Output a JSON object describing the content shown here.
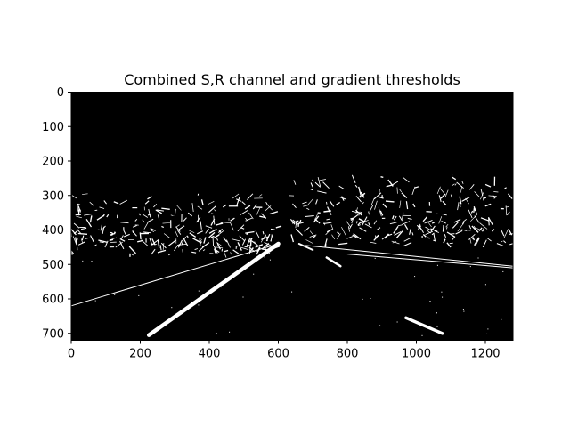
{
  "chart_data": {
    "type": "image",
    "title": "Combined S,R channel and gradient thresholds",
    "xlim": [
      0,
      1280
    ],
    "ylim": [
      720,
      0
    ],
    "xticks": [
      0,
      200,
      400,
      600,
      800,
      1000,
      1200
    ],
    "yticks": [
      0,
      100,
      200,
      300,
      400,
      500,
      600,
      700
    ],
    "xtick_labels": [
      "0",
      "200",
      "400",
      "600",
      "800",
      "1000",
      "1200"
    ],
    "ytick_labels": [
      "0",
      "100",
      "200",
      "300",
      "400",
      "500",
      "600",
      "700"
    ],
    "background_color": "#000000",
    "foreground_color": "#ffffff",
    "lane_lines": [
      {
        "name": "left-lane-solid",
        "points": [
          [
            225,
            705
          ],
          [
            600,
            440
          ]
        ],
        "width": 4.5
      },
      {
        "name": "right-lane-dashed-near",
        "points": [
          [
            970,
            655
          ],
          [
            1075,
            700
          ]
        ],
        "width": 3.5
      },
      {
        "name": "right-lane-dashed-mid",
        "points": [
          [
            740,
            480
          ],
          [
            780,
            505
          ]
        ],
        "width": 2.5
      },
      {
        "name": "right-lane-dashed-far",
        "points": [
          [
            660,
            440
          ],
          [
            700,
            458
          ]
        ],
        "width": 2
      },
      {
        "name": "road-edge-left",
        "points": [
          [
            0,
            620
          ],
          [
            600,
            440
          ]
        ],
        "width": 1
      },
      {
        "name": "road-edge-right",
        "points": [
          [
            680,
            445
          ],
          [
            1280,
            505
          ]
        ],
        "width": 1
      },
      {
        "name": "right-lane-shoulder",
        "points": [
          [
            800,
            470
          ],
          [
            1280,
            510
          ]
        ],
        "width": 1
      }
    ],
    "edge_regions": [
      {
        "name": "left-vegetation",
        "x": [
          0,
          600
        ],
        "y": [
          295,
          470
        ]
      },
      {
        "name": "right-vegetation",
        "x": [
          640,
          1280
        ],
        "y": [
          240,
          440
        ]
      }
    ]
  }
}
